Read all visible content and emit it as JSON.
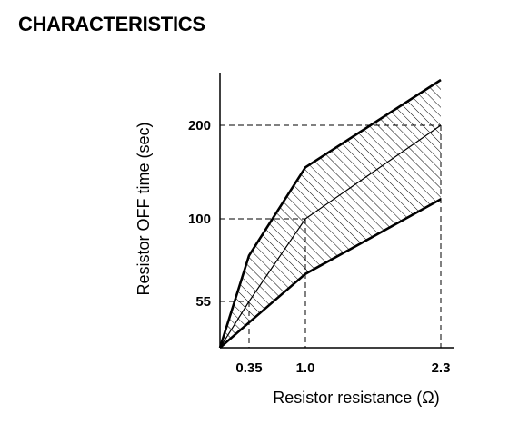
{
  "chart_data": {
    "type": "area",
    "title": "CHARACTERISTICS",
    "xlabel": "Resistor resistance (Ω)",
    "ylabel": "Resistor OFF time (sec)",
    "x_ticks": [
      0.35,
      1.0,
      2.3
    ],
    "x_tick_labels": [
      "0.35",
      "1.0",
      "2.3"
    ],
    "y_ticks": [
      55,
      100,
      200
    ],
    "y_tick_labels": [
      "55",
      "100",
      "200"
    ],
    "xlim": [
      0,
      2.3
    ],
    "grid": false,
    "series": [
      {
        "role": "upper",
        "x": [
          0,
          0.35,
          1.0,
          2.3
        ],
        "y": [
          0,
          80,
          155,
          282
        ]
      },
      {
        "role": "nominal",
        "x": [
          0,
          0.35,
          1.0,
          2.3
        ],
        "y": [
          0,
          55,
          100,
          200
        ]
      },
      {
        "role": "lower",
        "x": [
          0,
          0.35,
          1.0,
          2.3
        ],
        "y": [
          0,
          30,
          70,
          121
        ]
      }
    ],
    "band": {
      "between": [
        "upper",
        "lower"
      ],
      "fill": "hatched"
    },
    "reference_lines": [
      {
        "x": 0.35,
        "y": 55
      },
      {
        "x": 1.0,
        "y": 100
      },
      {
        "x": 2.3,
        "y": 200
      }
    ]
  }
}
